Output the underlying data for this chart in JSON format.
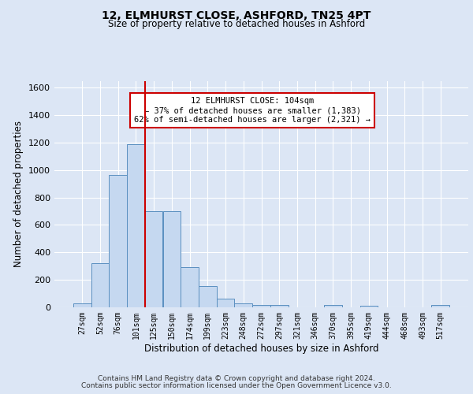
{
  "title1": "12, ELMHURST CLOSE, ASHFORD, TN25 4PT",
  "title2": "Size of property relative to detached houses in Ashford",
  "xlabel": "Distribution of detached houses by size in Ashford",
  "ylabel": "Number of detached properties",
  "categories": [
    "27sqm",
    "52sqm",
    "76sqm",
    "101sqm",
    "125sqm",
    "150sqm",
    "174sqm",
    "199sqm",
    "223sqm",
    "248sqm",
    "272sqm",
    "297sqm",
    "321sqm",
    "346sqm",
    "370sqm",
    "395sqm",
    "419sqm",
    "444sqm",
    "468sqm",
    "493sqm",
    "517sqm"
  ],
  "values": [
    30,
    320,
    965,
    1190,
    700,
    700,
    295,
    155,
    65,
    30,
    20,
    20,
    0,
    0,
    15,
    0,
    10,
    0,
    0,
    0,
    15
  ],
  "bar_color": "#c5d8f0",
  "bar_edge_color": "#5a8fc0",
  "bar_width": 1.0,
  "vline_x": 3.5,
  "vline_color": "#cc0000",
  "ylim": [
    0,
    1650
  ],
  "yticks": [
    0,
    200,
    400,
    600,
    800,
    1000,
    1200,
    1400,
    1600
  ],
  "annotation_text": "12 ELMHURST CLOSE: 104sqm\n← 37% of detached houses are smaller (1,383)\n62% of semi-detached houses are larger (2,321) →",
  "annotation_box_color": "white",
  "annotation_box_edge_color": "#cc0000",
  "footer1": "Contains HM Land Registry data © Crown copyright and database right 2024.",
  "footer2": "Contains public sector information licensed under the Open Government Licence v3.0.",
  "bg_color": "#dce6f5",
  "plot_bg_color": "#dce6f5",
  "grid_color": "white",
  "title1_fontsize": 10,
  "title2_fontsize": 8.5
}
